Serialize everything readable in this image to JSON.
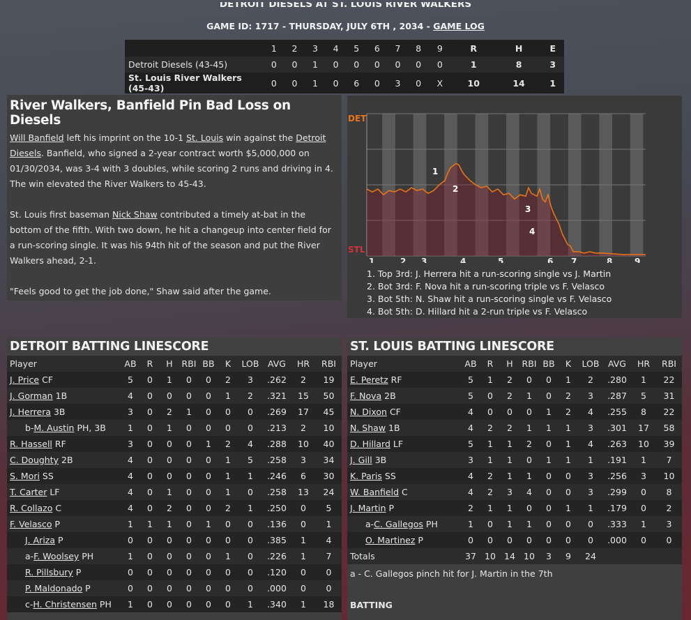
{
  "header": {
    "title": "DETROIT DIESELS AT ST. LOUIS RIVER WALKERS",
    "subtitle_prefix": "GAME ID: 1717 - THURSDAY, JULY 6TH , 2034 - ",
    "game_log_link": "GAME LOG"
  },
  "linescore": {
    "columns": [
      "1",
      "2",
      "3",
      "4",
      "5",
      "6",
      "7",
      "8",
      "9",
      "R",
      "H",
      "E"
    ],
    "away": {
      "team": "Detroit Diesels (43-45)",
      "cells": [
        "0",
        "0",
        "1",
        "0",
        "0",
        "0",
        "0",
        "0",
        "0",
        "1",
        "8",
        "3"
      ]
    },
    "home": {
      "team": "St. Louis River Walkers (45-43)",
      "cells": [
        "0",
        "0",
        "1",
        "0",
        "6",
        "0",
        "3",
        "0",
        "X",
        "10",
        "14",
        "1"
      ]
    }
  },
  "story": {
    "headline": "River Walkers, Banfield Pin Bad Loss on Diesels",
    "p1": {
      "link1": "Will Banfield",
      "t1": " left his imprint on the 10-1 ",
      "link2": "St. Louis",
      "t2": " win against the ",
      "link3": "Detroit Diesels",
      "t3": ". Banfield, who signed a 2-year contract worth $5,000,000 on 01/30/2034, was 3-4 with 3 doubles, while scoring 2 runs and driving in 4. The win elevated the River Walkers to 45-43."
    },
    "p2": {
      "t1": "St. Louis first baseman ",
      "link1": "Nick Shaw",
      "t2": " contributed a timely at-bat in the bottom of the fifth. With two down, he hit a changeup into center field for a run-scoring single. It was his 94th hit of the season and put the River Walkers ahead, 2-1."
    },
    "p3": "\"Feels good to get the job done,\" Shaw said after the game."
  },
  "win_prob": {
    "top_label": "DET",
    "bottom_label": "STL",
    "innings": [
      "1",
      "2",
      "3",
      "4",
      "5",
      "6",
      "7",
      "8",
      "9"
    ],
    "markers": [
      "1",
      "2",
      "3",
      "4"
    ],
    "colors": {
      "line": "#e8741a",
      "fill": "#8a1c2c",
      "det": "#e8741a",
      "stl": "#d0343a"
    },
    "events": [
      "1. Top 3rd: J. Herrera hit a run-scoring single vs J. Martin",
      "2. Bot 3rd: F. Nova hit a run-scoring triple vs F. Velasco",
      "3. Bot 5th: N. Shaw hit a run-scoring single vs F. Velasco",
      "4. Bot 5th: D. Hillard hit a 2-run triple vs F. Velasco"
    ]
  },
  "detroit": {
    "title": "DETROIT BATTING LINESCORE",
    "headers": [
      "Player",
      "AB",
      "R",
      "H",
      "RBI",
      "BB",
      "K",
      "LOB",
      "AVG",
      "HR",
      "RBI"
    ],
    "rows": [
      {
        "pre": "",
        "name": "J. Price",
        "pos": " CF",
        "ind": 0,
        "s": [
          "5",
          "0",
          "1",
          "0",
          "0",
          "2",
          "3",
          ".262",
          "2",
          "19"
        ]
      },
      {
        "pre": "",
        "name": "J. Gorman",
        "pos": " 1B",
        "ind": 0,
        "s": [
          "4",
          "0",
          "0",
          "0",
          "0",
          "1",
          "2",
          ".321",
          "15",
          "50"
        ]
      },
      {
        "pre": "",
        "name": "J. Herrera",
        "pos": " 3B",
        "ind": 0,
        "s": [
          "3",
          "0",
          "2",
          "1",
          "0",
          "0",
          "0",
          ".269",
          "17",
          "45"
        ]
      },
      {
        "pre": "b-",
        "name": "M. Austin",
        "pos": " PH, 3B",
        "ind": 2,
        "s": [
          "1",
          "0",
          "1",
          "0",
          "0",
          "0",
          "0",
          ".213",
          "2",
          "10"
        ]
      },
      {
        "pre": "",
        "name": "R. Hassell",
        "pos": " RF",
        "ind": 0,
        "s": [
          "3",
          "0",
          "0",
          "0",
          "1",
          "2",
          "4",
          ".288",
          "10",
          "40"
        ]
      },
      {
        "pre": "",
        "name": "C. Doughty",
        "pos": " 2B",
        "ind": 0,
        "s": [
          "4",
          "0",
          "0",
          "0",
          "0",
          "1",
          "5",
          ".258",
          "3",
          "34"
        ]
      },
      {
        "pre": "",
        "name": "S. Mori",
        "pos": " SS",
        "ind": 0,
        "s": [
          "4",
          "0",
          "0",
          "0",
          "0",
          "1",
          "1",
          ".246",
          "6",
          "30"
        ]
      },
      {
        "pre": "",
        "name": "T. Carter",
        "pos": " LF",
        "ind": 0,
        "s": [
          "4",
          "0",
          "1",
          "0",
          "0",
          "1",
          "0",
          ".258",
          "13",
          "24"
        ]
      },
      {
        "pre": "",
        "name": "R. Collazo",
        "pos": " C",
        "ind": 0,
        "s": [
          "4",
          "0",
          "2",
          "0",
          "0",
          "2",
          "1",
          ".250",
          "0",
          "5"
        ]
      },
      {
        "pre": "",
        "name": "F. Velasco",
        "pos": " P",
        "ind": 0,
        "s": [
          "1",
          "1",
          "1",
          "0",
          "1",
          "0",
          "0",
          ".136",
          "0",
          "1"
        ]
      },
      {
        "pre": "",
        "name": "J. Ariza",
        "pos": " P",
        "ind": 1,
        "s": [
          "0",
          "0",
          "0",
          "0",
          "0",
          "0",
          "0",
          ".385",
          "1",
          "4"
        ]
      },
      {
        "pre": "a-",
        "name": "F. Woolsey",
        "pos": " PH",
        "ind": 1,
        "s": [
          "1",
          "0",
          "0",
          "0",
          "0",
          "1",
          "0",
          ".226",
          "1",
          "7"
        ]
      },
      {
        "pre": "",
        "name": "R. Pillsbury",
        "pos": " P",
        "ind": 1,
        "s": [
          "0",
          "0",
          "0",
          "0",
          "0",
          "0",
          "0",
          ".120",
          "0",
          "0"
        ]
      },
      {
        "pre": "",
        "name": "P. Maldonado",
        "pos": " P",
        "ind": 1,
        "s": [
          "0",
          "0",
          "0",
          "0",
          "0",
          "0",
          "0",
          ".000",
          "0",
          "0"
        ]
      },
      {
        "pre": "c-",
        "name": "H. Christensen",
        "pos": " PH",
        "ind": 1,
        "s": [
          "1",
          "0",
          "0",
          "0",
          "0",
          "0",
          "1",
          ".340",
          "1",
          "18"
        ]
      }
    ]
  },
  "stlouis": {
    "title": "ST. LOUIS BATTING LINESCORE",
    "headers": [
      "Player",
      "AB",
      "R",
      "H",
      "RBI",
      "BB",
      "K",
      "LOB",
      "AVG",
      "HR",
      "RBI"
    ],
    "rows": [
      {
        "pre": "",
        "name": "E. Peretz",
        "pos": " RF",
        "ind": 0,
        "s": [
          "5",
          "1",
          "2",
          "0",
          "0",
          "1",
          "2",
          ".280",
          "1",
          "22"
        ]
      },
      {
        "pre": "",
        "name": "F. Nova",
        "pos": " 2B",
        "ind": 0,
        "s": [
          "5",
          "0",
          "2",
          "1",
          "0",
          "2",
          "3",
          ".287",
          "5",
          "31"
        ]
      },
      {
        "pre": "",
        "name": "N. Dixon",
        "pos": " CF",
        "ind": 0,
        "s": [
          "4",
          "0",
          "0",
          "0",
          "1",
          "2",
          "4",
          ".255",
          "8",
          "22"
        ]
      },
      {
        "pre": "",
        "name": "N. Shaw",
        "pos": " 1B",
        "ind": 0,
        "s": [
          "4",
          "2",
          "2",
          "1",
          "1",
          "1",
          "3",
          ".301",
          "17",
          "58"
        ]
      },
      {
        "pre": "",
        "name": "D. Hillard",
        "pos": " LF",
        "ind": 0,
        "s": [
          "5",
          "1",
          "1",
          "2",
          "0",
          "1",
          "4",
          ".263",
          "10",
          "39"
        ]
      },
      {
        "pre": "",
        "name": "J. Gill",
        "pos": " 3B",
        "ind": 0,
        "s": [
          "3",
          "1",
          "1",
          "0",
          "1",
          "1",
          "1",
          ".191",
          "1",
          "7"
        ]
      },
      {
        "pre": "",
        "name": "K. Paris",
        "pos": " SS",
        "ind": 0,
        "s": [
          "4",
          "2",
          "1",
          "1",
          "0",
          "0",
          "3",
          ".256",
          "3",
          "10"
        ]
      },
      {
        "pre": "",
        "name": "W. Banfield",
        "pos": " C",
        "ind": 0,
        "s": [
          "4",
          "2",
          "3",
          "4",
          "0",
          "0",
          "3",
          ".299",
          "0",
          "8"
        ]
      },
      {
        "pre": "",
        "name": "J. Martin",
        "pos": " P",
        "ind": 0,
        "s": [
          "2",
          "1",
          "1",
          "0",
          "0",
          "1",
          "1",
          ".179",
          "0",
          "2"
        ]
      },
      {
        "pre": "a-",
        "name": "C. Gallegos",
        "pos": " PH",
        "ind": 1,
        "s": [
          "1",
          "0",
          "1",
          "1",
          "0",
          "0",
          "0",
          ".333",
          "1",
          "3"
        ]
      },
      {
        "pre": "",
        "name": "O. Martinez",
        "pos": " P",
        "ind": 1,
        "s": [
          "0",
          "0",
          "0",
          "0",
          "0",
          "0",
          "0",
          ".000",
          "0",
          "0"
        ]
      }
    ],
    "totals": {
      "label": "Totals",
      "s": [
        "37",
        "10",
        "14",
        "10",
        "3",
        "9",
        "24",
        "",
        "",
        ""
      ]
    },
    "note": "a - C. Gallegos pinch hit for J. Martin in the 7th",
    "batting_label": "BATTING"
  }
}
